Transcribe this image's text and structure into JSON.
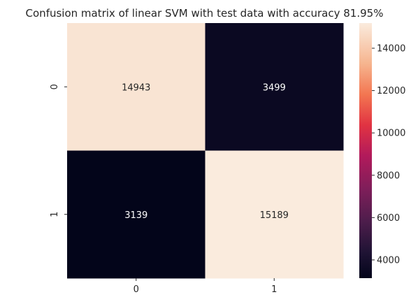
{
  "chart_data": {
    "type": "heatmap",
    "title": "Confusion matrix of linear SVM with test data with accuracy 81.95%",
    "xlabel": "",
    "ylabel": "",
    "x_categories": [
      "0",
      "1"
    ],
    "y_categories": [
      "0",
      "1"
    ],
    "values": [
      [
        14943,
        3499
      ],
      [
        3139,
        15189
      ]
    ],
    "annotations": [
      [
        "14943",
        "3499"
      ],
      [
        "3139",
        "15189"
      ]
    ],
    "colormap": "rocket",
    "color_range": [
      3139,
      15189
    ],
    "colorbar_ticks": [
      {
        "value": 4000,
        "label": "4000"
      },
      {
        "value": 6000,
        "label": "6000"
      },
      {
        "value": 8000,
        "label": "8000"
      },
      {
        "value": 10000,
        "label": "10000"
      },
      {
        "value": 12000,
        "label": "12000"
      },
      {
        "value": 14000,
        "label": "14000"
      }
    ],
    "grid": false,
    "colorbar": "right"
  }
}
